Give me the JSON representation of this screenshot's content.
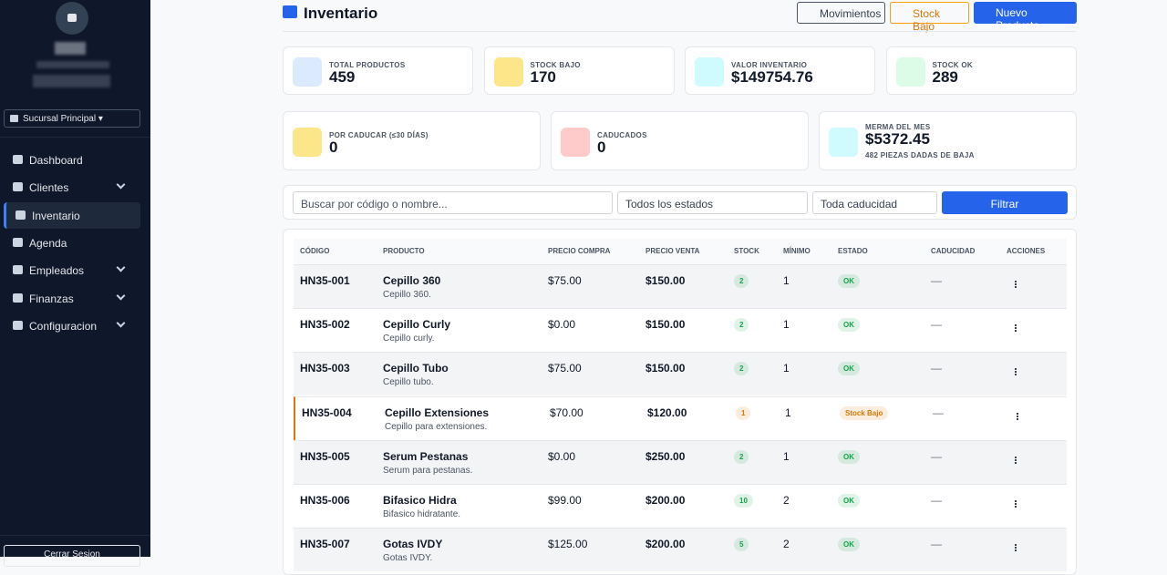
{
  "sidebar": {
    "branch": "Sucursal Principal",
    "menu": [
      "Dashboard",
      "Clientes",
      "Inventario",
      "Agenda",
      "Empleados",
      "Finanzas",
      "Configuracion"
    ],
    "logout": "Cerrar Sesion"
  },
  "header": {
    "title": "Inventario",
    "buttons": [
      "Movimientos",
      "Stock Bajo",
      "Nuevo Producto"
    ]
  },
  "stats": [
    {
      "label": "TOTAL PRODUCTOS",
      "value": 459,
      "color": "#2563eb",
      "bg": "#dbeafe"
    },
    {
      "label": "STOCK BAJO",
      "value": 170,
      "color": "#b45309",
      "bg": "#fde68a"
    },
    {
      "label": "VALOR INVENTARIO",
      "value": "$149754.76",
      "color": "#0891b2",
      "bg": "#cffafe"
    },
    {
      "label": "STOCK OK",
      "value": 289,
      "color": "#16a34a",
      "bg": "#dcfce7"
    }
  ],
  "stats2": [
    {
      "label": "POR CADUCAR (≤30 DÍAS)",
      "value": 0,
      "color": "#b45309",
      "bg": "#fde68a"
    },
    {
      "label": "CADUCADOS",
      "value": 0,
      "color": "#dc2626",
      "bg": "#fecaca"
    },
    {
      "label": "MERMA DEL MES",
      "value": "$5372.45",
      "note": "482 PIEZAS DADAS DE BAJA",
      "color": "#0891b2",
      "bg": "#cffafe"
    }
  ],
  "filters": {
    "search": "Buscar por código o nombre...",
    "status": "Todos los estados",
    "expiry": "Toda caducidad",
    "button": "Filtrar"
  },
  "table": {
    "columns": [
      "CÓDIGO",
      "PRODUCTO",
      "PRECIO COMPRA",
      "PRECIO VENTA",
      "STOCK",
      "MÍNIMO",
      "ESTADO",
      "CADUCIDAD",
      "ACCIONES"
    ],
    "rows": [
      {
        "code": "HN35-001",
        "name": "Cepillo 360",
        "desc": "Cepillo 360.",
        "buy": "$75.00",
        "sell": "$150.00",
        "stock": 2,
        "min": 1,
        "status": "OK",
        "color": "#16a34a",
        "expiry": "—"
      },
      {
        "code": "HN35-002",
        "name": "Cepillo Curly",
        "desc": "Cepillo curly.",
        "buy": "$0.00",
        "sell": "$150.00",
        "stock": 2,
        "min": 1,
        "status": "OK",
        "color": "#16a34a",
        "expiry": "—"
      },
      {
        "code": "HN35-003",
        "name": "Cepillo Tubo",
        "desc": "Cepillo tubo.",
        "buy": "$75.00",
        "sell": "$150.00",
        "stock": 2,
        "min": 1,
        "status": "OK",
        "color": "#16a34a",
        "expiry": "—"
      },
      {
        "code": "HN35-004",
        "name": "Cepillo Extensiones",
        "desc": "Cepillo para extensiones.",
        "buy": "$70.00",
        "sell": "$120.00",
        "stock": 1,
        "min": 1,
        "status": "Stock Bajo",
        "color": "#d97706",
        "expiry": "—"
      },
      {
        "code": "HN35-005",
        "name": "Serum Pestanas",
        "desc": "Serum para pestanas.",
        "buy": "$0.00",
        "sell": "$250.00",
        "stock": 2,
        "min": 1,
        "status": "OK",
        "color": "#16a34a",
        "expiry": "—"
      },
      {
        "code": "HN35-006",
        "name": "Bifasico Hidra",
        "desc": "Bifasico hidratante.",
        "buy": "$99.00",
        "sell": "$200.00",
        "stock": 10,
        "min": 2,
        "status": "OK",
        "color": "#16a34a",
        "expiry": "—"
      },
      {
        "code": "HN35-007",
        "name": "Gotas IVDY",
        "desc": "Gotas IVDY.",
        "buy": "$125.00",
        "sell": "$200.00",
        "stock": 5,
        "min": 2,
        "status": "OK",
        "color": "#16a34a",
        "expiry": "—"
      }
    ]
  }
}
